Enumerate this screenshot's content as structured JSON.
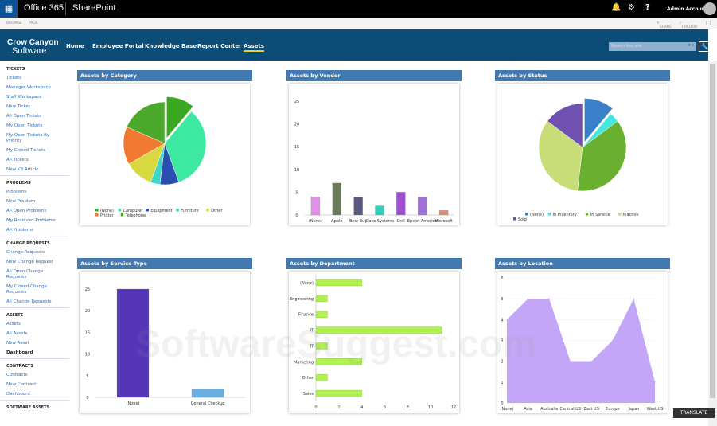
{
  "topbar": {
    "app": "Office 365",
    "product": "SharePoint",
    "user": "Admin Account",
    "icons": [
      "waffle-icon",
      "bell-icon",
      "gear-icon",
      "help-icon",
      "avatar"
    ]
  },
  "ribbon": {
    "tabs": [
      "BROWSE",
      "PAGE"
    ],
    "share": "SHARE",
    "follow": "FOLLOW"
  },
  "nav": {
    "logo_line1": "Crow Canyon",
    "logo_line2": "Software",
    "items": [
      "Home",
      "Employee Portal",
      "Knowledge Base",
      "Report Center",
      "Assets"
    ],
    "active": "Assets",
    "search_placeholder": "Search this site"
  },
  "sidebar": [
    {
      "title": "TICKETS",
      "links": [
        "Tickets",
        "Manager Workspace",
        "Staff Workspace",
        "New Ticket",
        "All Open Tickets",
        "My Open Tickets",
        "My Open Tickets By Priority",
        "My Closed Tickets",
        "All Tickets",
        "New KB Article"
      ]
    },
    {
      "title": "PROBLEMS",
      "links": [
        "Problems",
        "New Problem",
        "All Open Problems",
        "My Resolved Problems",
        "All Problems"
      ]
    },
    {
      "title": "CHANGE REQUESTS",
      "links": [
        "Change Requests",
        "New Change Request",
        "All Open Change Requests",
        "My Closed Change Requests",
        "All Change Requests"
      ]
    },
    {
      "title": "ASSETS",
      "links": [
        "Assets",
        "All Assets",
        "New Asset",
        "Dashboard"
      ],
      "current": "Dashboard"
    },
    {
      "title": "CONTRACTS",
      "links": [
        "Contracts",
        "New Contract",
        "Dashboard"
      ]
    },
    {
      "title": "SOFTWARE ASSETS",
      "links": []
    }
  ],
  "translate": "TRANSLATE",
  "watermark": "SoftwareSuggest.com",
  "chart_data": [
    {
      "title": "Assets by Category",
      "type": "pie",
      "categories": [
        "(None)",
        "Computer",
        "Equipment",
        "Furniture",
        "Other",
        "Printer",
        "Telephone"
      ],
      "values": [
        3,
        9,
        2,
        1,
        3,
        4,
        5
      ],
      "colors": [
        "#3aa820",
        "#3de8a0",
        "#2a4fb0",
        "#3dd6c8",
        "#d8d840",
        "#f07a30",
        "#4aa82a"
      ],
      "legend": "bottom"
    },
    {
      "title": "Assets by Vendor",
      "type": "bar",
      "categories": [
        "(None)",
        "Apple",
        "Best Buy",
        "Cisco Systems",
        "Dell",
        "Epson America",
        "Microsoft"
      ],
      "values": [
        4,
        7,
        4,
        2,
        5,
        4,
        1
      ],
      "colors": [
        "#e090e8",
        "#6a7a5a",
        "#5a5a80",
        "#30d0c0",
        "#a050d0",
        "#a070d8",
        "#e09070"
      ],
      "ylim": [
        0,
        25
      ],
      "yticks": [
        0,
        5,
        10,
        15,
        20,
        25
      ]
    },
    {
      "title": "Assets by Status",
      "type": "pie",
      "categories": [
        "(None)",
        "In Inventory",
        "In Service",
        "Inactive",
        "Sold"
      ],
      "values": [
        3,
        1,
        10,
        9,
        4
      ],
      "colors": [
        "#3a80c8",
        "#40e8e0",
        "#6ab030",
        "#c8dc78",
        "#7050b0"
      ],
      "legend": "bottom"
    },
    {
      "title": "Assets by Service Type",
      "type": "bar",
      "categories": [
        "(None)",
        "General Checkup"
      ],
      "values": [
        25,
        2
      ],
      "colors": [
        "#5535b8",
        "#6aaee0"
      ],
      "ylim": [
        0,
        25
      ],
      "yticks": [
        0,
        5,
        10,
        15,
        20,
        25
      ]
    },
    {
      "title": "Assets by Department",
      "type": "hbar",
      "categories": [
        "(None)",
        "Engineering",
        "Finance",
        "IT",
        "IT",
        "Marketing",
        "Other",
        "Sales"
      ],
      "values": [
        4,
        1,
        1,
        11,
        1,
        4,
        1,
        4
      ],
      "color": "#b0f050",
      "xlim": [
        0,
        12
      ],
      "xticks": [
        0,
        2,
        4,
        6,
        8,
        10,
        12
      ]
    },
    {
      "title": "Assets by Location",
      "type": "area",
      "categories": [
        "(None)",
        "Asia",
        "Australia",
        "Central US",
        "East US",
        "Europe",
        "Japan",
        "West US"
      ],
      "values": [
        4,
        5,
        5,
        2,
        2,
        3,
        5,
        1
      ],
      "color": "#c3a6f8",
      "ylim": [
        0,
        6
      ],
      "yticks": [
        0,
        1,
        2,
        3,
        4,
        5,
        6
      ],
      "grid": true
    }
  ]
}
